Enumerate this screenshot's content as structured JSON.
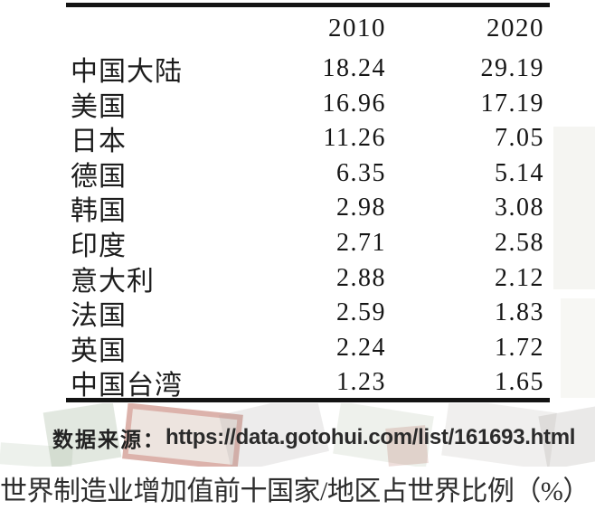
{
  "table": {
    "columns": [
      "2010",
      "2020"
    ],
    "rows": [
      {
        "name": "中国大陆",
        "v2010": "18.24",
        "v2020": "29.19"
      },
      {
        "name": "美国",
        "v2010": "16.96",
        "v2020": "17.19"
      },
      {
        "name": "日本",
        "v2010": "11.26",
        "v2020": "7.05"
      },
      {
        "name": "德国",
        "v2010": "6.35",
        "v2020": "5.14"
      },
      {
        "name": "韩国",
        "v2010": "2.98",
        "v2020": "3.08"
      },
      {
        "name": "印度",
        "v2010": "2.71",
        "v2020": "2.58"
      },
      {
        "name": "意大利",
        "v2010": "2.88",
        "v2020": "2.12"
      },
      {
        "name": "法国",
        "v2010": "2.59",
        "v2020": "1.83"
      },
      {
        "name": "英国",
        "v2010": "2.24",
        "v2020": "1.72"
      },
      {
        "name": "中国台湾",
        "v2010": "1.23",
        "v2020": "1.65"
      }
    ]
  },
  "source": {
    "label": "数据来源：",
    "url": "https://data.gotohui.com/list/161693.html"
  },
  "caption": "世界制造业增加值前十国家/地区占世界比例（%）",
  "colors": {
    "rule": "#141414",
    "text": "#1c1c1c",
    "background": "#ffffff"
  },
  "chart_data": {
    "type": "table",
    "title": "世界制造业增加值前十国家/地区占世界比例（%）",
    "categories": [
      "中国大陆",
      "美国",
      "日本",
      "德国",
      "韩国",
      "印度",
      "意大利",
      "法国",
      "英国",
      "中国台湾"
    ],
    "series": [
      {
        "name": "2010",
        "values": [
          18.24,
          16.96,
          11.26,
          6.35,
          2.98,
          2.71,
          2.88,
          2.59,
          2.24,
          1.23
        ]
      },
      {
        "name": "2020",
        "values": [
          29.19,
          17.19,
          7.05,
          5.14,
          3.08,
          2.58,
          2.12,
          1.83,
          1.72,
          1.65
        ]
      }
    ],
    "unit": "%",
    "source": "https://data.gotohui.com/list/161693.html",
    "layout": {
      "grid": false,
      "rules": [
        "top",
        "bottom"
      ],
      "value_alignment": "right"
    }
  }
}
